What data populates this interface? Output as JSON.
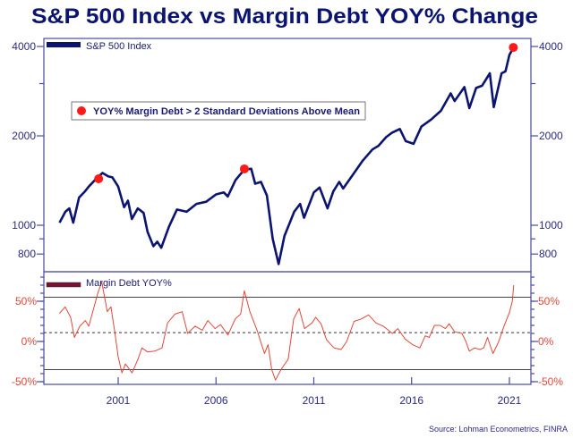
{
  "chart_data": [
    {
      "type": "line",
      "title": "S&P 500 Index vs Margin Debt YOY% Change",
      "legend": "top-left",
      "series_name": "S&P 500 Index",
      "color": "#0b1470",
      "y_scale": "log",
      "ylim": [
        720,
        4300
      ],
      "xlim": [
        1997.2,
        2022.1
      ],
      "y_ticks": [
        {
          "value": 4000,
          "label": "4000"
        },
        {
          "value": 2000,
          "label": "2000"
        },
        {
          "value": 1000,
          "label": "1000"
        },
        {
          "value": 800,
          "label": "800"
        }
      ],
      "points": [
        [
          1998.0,
          1020
        ],
        [
          1998.3,
          1110
        ],
        [
          1998.5,
          1140
        ],
        [
          1998.7,
          1020
        ],
        [
          1999.0,
          1240
        ],
        [
          1999.3,
          1300
        ],
        [
          1999.5,
          1350
        ],
        [
          1999.9,
          1440
        ],
        [
          2000.2,
          1500
        ],
        [
          2000.5,
          1460
        ],
        [
          2000.7,
          1450
        ],
        [
          2001.0,
          1350
        ],
        [
          2001.3,
          1150
        ],
        [
          2001.5,
          1210
        ],
        [
          2001.7,
          1050
        ],
        [
          2002.0,
          1140
        ],
        [
          2002.3,
          1100
        ],
        [
          2002.5,
          950
        ],
        [
          2002.8,
          850
        ],
        [
          2003.0,
          880
        ],
        [
          2003.2,
          840
        ],
        [
          2003.6,
          990
        ],
        [
          2004.0,
          1130
        ],
        [
          2004.5,
          1110
        ],
        [
          2005.0,
          1180
        ],
        [
          2005.5,
          1200
        ],
        [
          2006.0,
          1270
        ],
        [
          2006.4,
          1290
        ],
        [
          2006.6,
          1250
        ],
        [
          2007.0,
          1420
        ],
        [
          2007.45,
          1540
        ],
        [
          2007.8,
          1550
        ],
        [
          2008.0,
          1380
        ],
        [
          2008.3,
          1400
        ],
        [
          2008.6,
          1260
        ],
        [
          2008.9,
          900
        ],
        [
          2009.2,
          740
        ],
        [
          2009.5,
          920
        ],
        [
          2010.0,
          1110
        ],
        [
          2010.3,
          1180
        ],
        [
          2010.5,
          1060
        ],
        [
          2011.0,
          1290
        ],
        [
          2011.3,
          1340
        ],
        [
          2011.7,
          1140
        ],
        [
          2012.0,
          1300
        ],
        [
          2012.3,
          1400
        ],
        [
          2012.5,
          1330
        ],
        [
          2013.0,
          1480
        ],
        [
          2013.5,
          1650
        ],
        [
          2014.0,
          1800
        ],
        [
          2014.3,
          1850
        ],
        [
          2014.7,
          1980
        ],
        [
          2015.0,
          2050
        ],
        [
          2015.4,
          2110
        ],
        [
          2015.7,
          1920
        ],
        [
          2016.1,
          1880
        ],
        [
          2016.5,
          2150
        ],
        [
          2017.0,
          2270
        ],
        [
          2017.5,
          2430
        ],
        [
          2018.0,
          2780
        ],
        [
          2018.2,
          2620
        ],
        [
          2018.7,
          2920
        ],
        [
          2018.95,
          2480
        ],
        [
          2019.3,
          2900
        ],
        [
          2019.6,
          2950
        ],
        [
          2020.0,
          3250
        ],
        [
          2020.2,
          2500
        ],
        [
          2020.6,
          3250
        ],
        [
          2020.8,
          3300
        ],
        [
          2021.0,
          3750
        ],
        [
          2021.2,
          3950
        ]
      ],
      "markers": {
        "label": "YOY% Margin Debt > 2 Standard Deviations Above Mean",
        "color": "#ff1a1a",
        "points": [
          [
            2000.0,
            1434
          ],
          [
            2007.45,
            1548
          ],
          [
            2021.2,
            3970
          ]
        ]
      }
    },
    {
      "type": "line",
      "series_name": "Margin Debt YOY%",
      "color": "#e0483a",
      "legend": "top-left",
      "ylim": [
        -53,
        88
      ],
      "xlim": [
        1997.2,
        2022.1
      ],
      "y_ticks": [
        {
          "value": 50,
          "label": "50%"
        },
        {
          "value": 0,
          "label": "0%"
        },
        {
          "value": -50,
          "label": "-50%"
        }
      ],
      "reference_lines": {
        "upper_solid": 55,
        "mean_dashed": 11,
        "lower_solid": -35
      },
      "x_ticks": [
        {
          "value": 2001,
          "label": "2001"
        },
        {
          "value": 2006,
          "label": "2006"
        },
        {
          "value": 2011,
          "label": "2011"
        },
        {
          "value": 2016,
          "label": "2016"
        },
        {
          "value": 2021,
          "label": "2021"
        }
      ],
      "points": [
        [
          1998.0,
          35
        ],
        [
          1998.29,
          43
        ],
        [
          1998.57,
          30
        ],
        [
          1998.76,
          5
        ],
        [
          1999.04,
          19
        ],
        [
          1999.32,
          26
        ],
        [
          1999.5,
          19
        ],
        [
          1999.97,
          61
        ],
        [
          2000.16,
          74
        ],
        [
          2000.44,
          37
        ],
        [
          2000.63,
          43
        ],
        [
          2000.81,
          14
        ],
        [
          2001.0,
          -19
        ],
        [
          2001.19,
          -39
        ],
        [
          2001.37,
          -28
        ],
        [
          2001.71,
          -39
        ],
        [
          2002.03,
          -21
        ],
        [
          2002.21,
          -8
        ],
        [
          2002.5,
          -13
        ],
        [
          2002.87,
          -12
        ],
        [
          2003.24,
          -8
        ],
        [
          2003.52,
          23
        ],
        [
          2003.9,
          34
        ],
        [
          2004.27,
          37
        ],
        [
          2004.55,
          10
        ],
        [
          2004.93,
          19
        ],
        [
          2005.3,
          14
        ],
        [
          2005.58,
          26
        ],
        [
          2005.95,
          16
        ],
        [
          2006.23,
          21
        ],
        [
          2006.61,
          8
        ],
        [
          2006.98,
          28
        ],
        [
          2007.26,
          34
        ],
        [
          2007.45,
          63
        ],
        [
          2007.73,
          37
        ],
        [
          2008.1,
          14
        ],
        [
          2008.48,
          -15
        ],
        [
          2008.66,
          -4
        ],
        [
          2008.85,
          -35
        ],
        [
          2009.04,
          -48
        ],
        [
          2009.32,
          -35
        ],
        [
          2009.69,
          -22
        ],
        [
          2009.97,
          28
        ],
        [
          2010.25,
          41
        ],
        [
          2010.53,
          16
        ],
        [
          2010.91,
          23
        ],
        [
          2011.09,
          30
        ],
        [
          2011.37,
          22
        ],
        [
          2011.65,
          2
        ],
        [
          2012.03,
          -8
        ],
        [
          2012.4,
          -10
        ],
        [
          2012.68,
          0
        ],
        [
          2013.06,
          25
        ],
        [
          2013.43,
          28
        ],
        [
          2013.8,
          33
        ],
        [
          2014.18,
          23
        ],
        [
          2014.55,
          19
        ],
        [
          2015.02,
          10
        ],
        [
          2015.3,
          16
        ],
        [
          2015.67,
          3
        ],
        [
          2016.05,
          -4
        ],
        [
          2016.42,
          -8
        ],
        [
          2016.7,
          7
        ],
        [
          2016.9,
          5
        ],
        [
          2017.17,
          20
        ],
        [
          2017.45,
          20
        ],
        [
          2017.73,
          16
        ],
        [
          2017.92,
          22
        ],
        [
          2018.2,
          12
        ],
        [
          2018.57,
          10
        ],
        [
          2018.76,
          1
        ],
        [
          2018.95,
          -12
        ],
        [
          2019.22,
          -8
        ],
        [
          2019.5,
          -10
        ],
        [
          2019.69,
          -8
        ],
        [
          2019.88,
          5
        ],
        [
          2020.16,
          -15
        ],
        [
          2020.44,
          -1
        ],
        [
          2020.72,
          19
        ],
        [
          2021.0,
          36
        ],
        [
          2021.15,
          50
        ],
        [
          2021.22,
          70
        ]
      ]
    }
  ],
  "source": "Source: Lohman Econometrics, FINRA"
}
